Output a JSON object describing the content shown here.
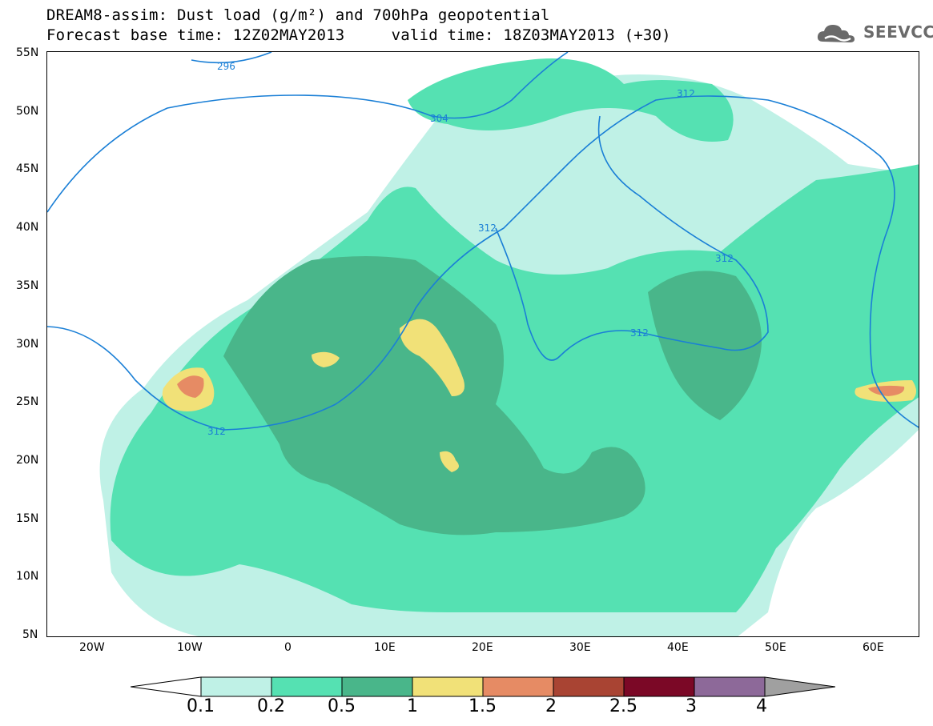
{
  "title": {
    "line1": "DREAM8-assim: Dust load (g/m²) and 700hPa geopotential",
    "line2": "Forecast base time: 12Z02MAY2013     valid time: 18Z03MAY2013 (+30)"
  },
  "logo": {
    "text": "SEEVCCC",
    "icon": "cloud-icon"
  },
  "map": {
    "lat_labels": [
      "55N",
      "50N",
      "45N",
      "40N",
      "35N",
      "30N",
      "25N",
      "20N",
      "15N",
      "10N",
      "5N"
    ],
    "lon_labels": [
      "20W",
      "10W",
      "0",
      "10E",
      "20E",
      "30E",
      "40E",
      "50E",
      "60E"
    ],
    "contour_labels": [
      "296",
      "304",
      "312",
      "312",
      "312",
      "312",
      "312"
    ]
  },
  "colorbar": {
    "labels": [
      "0.1",
      "0.2",
      "0.5",
      "1",
      "1.5",
      "2",
      "2.5",
      "3",
      "4"
    ],
    "colors": [
      "#ffffff",
      "#bff1e6",
      "#55e1b2",
      "#49b68a",
      "#f1e178",
      "#e68b64",
      "#a94433",
      "#7b0826",
      "#8d6999",
      "#a0a0a0"
    ]
  }
}
